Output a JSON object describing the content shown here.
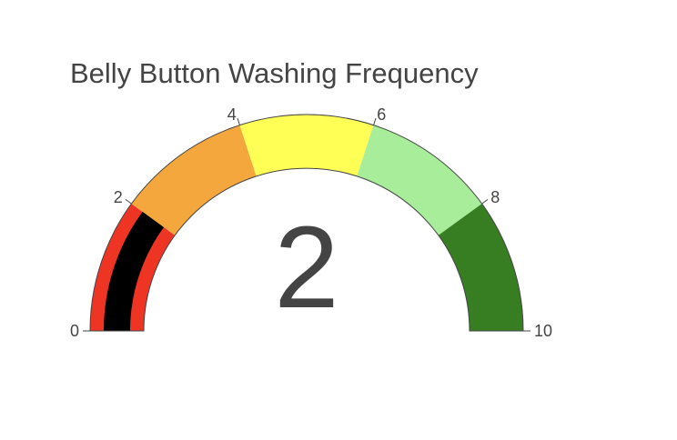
{
  "chart_data": {
    "type": "gauge",
    "title": "Belly Button Washing Frequency",
    "value": 2,
    "range": [
      0,
      10
    ],
    "tick_values": [
      0,
      2,
      4,
      6,
      8,
      10
    ],
    "tick_labels": [
      "0",
      "2",
      "4",
      "6",
      "8",
      "10"
    ],
    "steps": [
      {
        "range": [
          0,
          2
        ],
        "color": "#ee3524"
      },
      {
        "range": [
          2,
          4
        ],
        "color": "#f3a73d"
      },
      {
        "range": [
          4,
          6
        ],
        "color": "#ffff55"
      },
      {
        "range": [
          6,
          8
        ],
        "color": "#a8ed9a"
      },
      {
        "range": [
          8,
          10
        ],
        "color": "#377e22"
      }
    ],
    "bar_color": "#000000"
  }
}
